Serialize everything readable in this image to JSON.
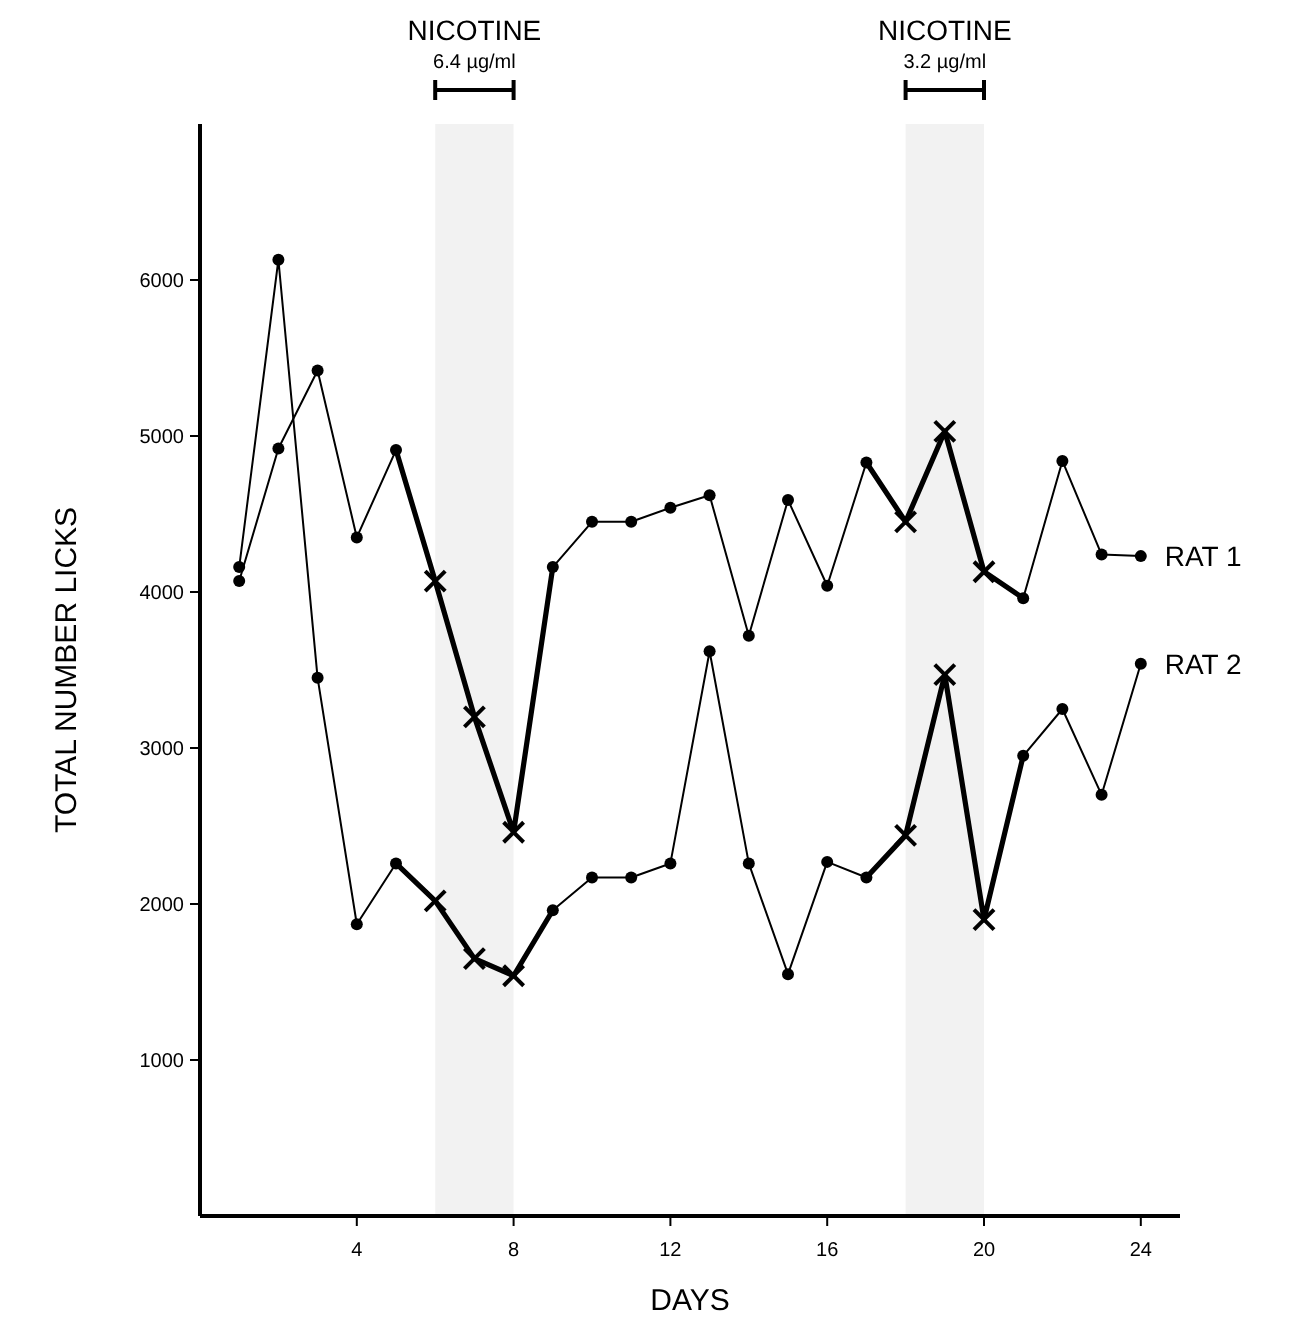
{
  "chart_data": {
    "type": "line",
    "xlabel": "DAYS",
    "ylabel": "TOTAL NUMBER LICKS",
    "x": [
      1,
      2,
      3,
      4,
      5,
      6,
      7,
      8,
      9,
      10,
      11,
      12,
      13,
      14,
      15,
      16,
      17,
      18,
      19,
      20,
      21,
      22,
      23,
      24
    ],
    "xlim": [
      0,
      25
    ],
    "xticks": [
      4,
      8,
      12,
      16,
      20,
      24
    ],
    "ylim": [
      0,
      7000
    ],
    "yticks": [
      1000,
      2000,
      3000,
      4000,
      5000,
      6000
    ],
    "grid": false,
    "legend": false,
    "series": [
      {
        "name": "RAT 1",
        "type": "line",
        "color": "#000000",
        "marker": "none",
        "values": [
          4070,
          4920,
          5420,
          4350,
          4910,
          4070,
          3200,
          2460,
          4160,
          4450,
          4450,
          4540,
          4620,
          3720,
          4590,
          4040,
          4830,
          4450,
          5030,
          4130,
          3960,
          4840,
          4240,
          4230
        ]
      },
      {
        "type": "line",
        "color": "#000000",
        "marker": "none",
        "x": [
          5,
          6,
          7,
          8,
          9
        ],
        "values": [
          4910,
          4070,
          3200,
          2460,
          4160
        ]
      },
      {
        "type": "line",
        "color": "#000000",
        "marker": "none",
        "x": [
          17,
          18,
          19,
          20,
          21
        ],
        "values": [
          4830,
          4450,
          5030,
          4130,
          3960
        ]
      },
      {
        "type": "scatter",
        "color": "#000000",
        "marker": "circle",
        "values": [
          4070,
          4920,
          5420,
          4350,
          4910,
          null,
          null,
          null,
          4160,
          4450,
          4450,
          4540,
          4620,
          3720,
          4590,
          4040,
          4830,
          null,
          null,
          null,
          3960,
          4840,
          4240,
          4230
        ]
      },
      {
        "type": "scatter",
        "color": "#000000",
        "marker": "cross",
        "values": [
          null,
          null,
          null,
          null,
          null,
          4070,
          3200,
          2460,
          null,
          null,
          null,
          null,
          null,
          null,
          null,
          null,
          null,
          4450,
          5030,
          4130,
          null,
          null,
          null,
          null
        ]
      },
      {
        "name": "RAT 2",
        "type": "line",
        "color": "#000000",
        "marker": "none",
        "values": [
          4160,
          6130,
          3450,
          1870,
          2260,
          2020,
          1650,
          1540,
          1960,
          2170,
          2170,
          2260,
          3620,
          2260,
          1550,
          2270,
          2170,
          2440,
          3470,
          1900,
          2950,
          3250,
          2700,
          3540
        ]
      },
      {
        "type": "line",
        "color": "#000000",
        "marker": "none",
        "x": [
          5,
          6,
          7,
          8,
          9
        ],
        "values": [
          2260,
          2020,
          1650,
          1540,
          1960
        ]
      },
      {
        "type": "line",
        "color": "#000000",
        "marker": "none",
        "x": [
          17,
          18,
          19,
          20,
          21
        ],
        "values": [
          2170,
          2440,
          3470,
          1900,
          2950
        ]
      },
      {
        "type": "scatter",
        "color": "#000000",
        "marker": "circle",
        "values": [
          4160,
          6130,
          3450,
          1870,
          2260,
          null,
          null,
          null,
          1960,
          2170,
          2170,
          2260,
          3620,
          2260,
          1550,
          2270,
          2170,
          null,
          null,
          null,
          2950,
          3250,
          2700,
          3540
        ]
      },
      {
        "type": "scatter",
        "color": "#000000",
        "marker": "cross",
        "values": [
          null,
          null,
          null,
          null,
          null,
          2020,
          1650,
          1540,
          null,
          null,
          null,
          null,
          null,
          null,
          null,
          null,
          null,
          2440,
          3470,
          1900,
          null,
          null,
          null,
          null
        ]
      }
    ],
    "bands": [
      {
        "axis": "x",
        "from": 6,
        "to": 8,
        "label": "NICOTINE\n6.4 µg/ml"
      },
      {
        "axis": "x",
        "from": 18,
        "to": 20,
        "label": "NICOTINE\n3.2 µg/ml"
      }
    ]
  }
}
